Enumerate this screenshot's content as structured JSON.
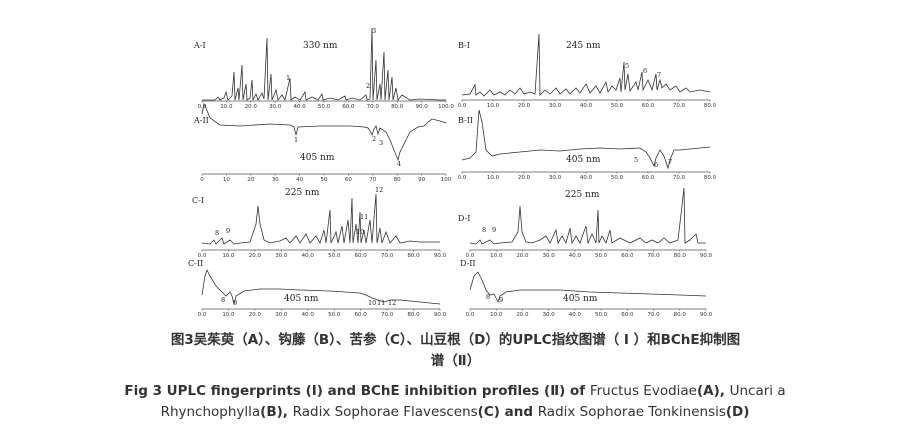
{
  "panels": [
    {
      "id": "A-I",
      "label": "A-I",
      "wavelength": "330 nm",
      "x_ticks": [
        "0.0",
        "10.0",
        "20.0",
        "30.0",
        "40.0",
        "50.0",
        "60.0",
        "70.0",
        "80.0",
        "90.0",
        "100.0"
      ],
      "peaks": [
        "1",
        "2",
        "3"
      ]
    },
    {
      "id": "A-II",
      "label": "A-II",
      "wavelength": "405 nm",
      "x_ticks": [
        "0",
        "10",
        "20",
        "30",
        "40",
        "50",
        "60",
        "70",
        "80",
        "90",
        "100"
      ],
      "peaks": [
        "1",
        "2",
        "3",
        "4"
      ]
    },
    {
      "id": "B-I",
      "label": "B-I",
      "wavelength": "245 nm",
      "x_ticks": [
        "0.0",
        "10.0",
        "20.0",
        "30.0",
        "40.0",
        "50.0",
        "60.0",
        "70.0",
        "80.0"
      ],
      "peaks": [
        "5",
        "6",
        "7"
      ]
    },
    {
      "id": "B-II",
      "label": "B-II",
      "wavelength": "405 nm",
      "x_ticks": [
        "0.0",
        "10.0",
        "20.0",
        "30.0",
        "40.0",
        "50.0",
        "60.0",
        "70.0",
        "80.0"
      ],
      "peaks": [
        "5",
        "6",
        "7"
      ]
    },
    {
      "id": "C-I",
      "label": "C-I",
      "wavelength": "225 nm",
      "x_ticks": [
        "0.0",
        "10.0",
        "20.0",
        "30.0",
        "40.0",
        "50.0",
        "60.0",
        "70.0",
        "80.0",
        "90.0"
      ],
      "peaks": [
        "8",
        "9",
        "10",
        "11",
        "12"
      ]
    },
    {
      "id": "C-II",
      "label": "C-II",
      "wavelength": "405 nm",
      "x_ticks": [
        "0.0",
        "10.0",
        "20.0",
        "30.0",
        "40.0",
        "50.0",
        "60.0",
        "70.0",
        "80.0",
        "90.0"
      ],
      "peaks": [
        "8",
        "9",
        "10",
        "11",
        "12"
      ]
    },
    {
      "id": "D-I",
      "label": "D-I",
      "wavelength": "225 nm",
      "x_ticks": [
        "0.0",
        "10.0",
        "20.0",
        "30.0",
        "40.0",
        "50.0",
        "60.0",
        "70.0",
        "80.0",
        "90.0"
      ],
      "peaks": [
        "8",
        "9"
      ]
    },
    {
      "id": "D-II",
      "label": "D-II",
      "wavelength": "405 nm",
      "x_ticks": [
        "0.0",
        "10.0",
        "20.0",
        "30.0",
        "40.0",
        "50.0",
        "60.0",
        "70.0",
        "80.0",
        "90.0"
      ],
      "peaks": [
        "8",
        "9"
      ]
    }
  ],
  "caption_cn": {
    "line1": "图3吴茱萸（A）、钩藤（B）、苦参（C）、山豆根（D）的UPLC指纹图谱（ Ⅰ ）和BChE抑制图",
    "line2": "谱（Ⅱ）"
  },
  "caption_en": {
    "s1": "Fig 3 UPLC fingerprints (I) and BChE inhibition profiles (Ⅱ) of ",
    "s2": "Fructus Evodiae",
    "s3": "(A), ",
    "s4": "Uncari a Rhynchophylla",
    "s5": "(B), ",
    "s6": "Radix Sophorae Flavescens",
    "s7": "(C) and ",
    "s8": "Radix Sophorae Tonkinensis",
    "s9": "(D)"
  },
  "colors": {
    "trace": "#333333",
    "text": "#222222"
  }
}
